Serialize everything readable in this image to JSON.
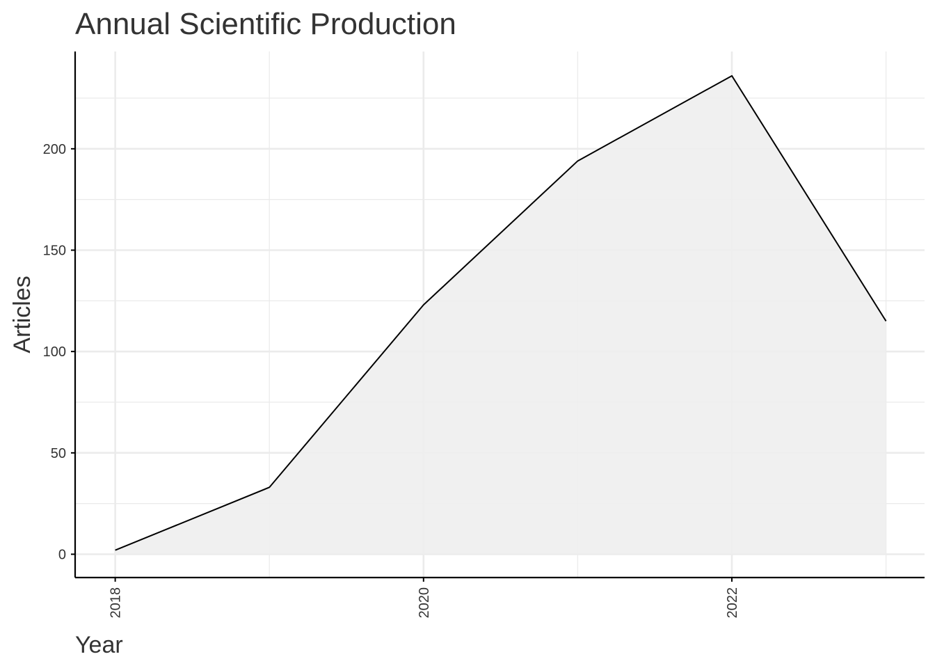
{
  "chart_data": {
    "type": "area",
    "title": "Annual Scientific Production",
    "xlabel": "Year",
    "ylabel": "Articles",
    "x": [
      2018,
      2019,
      2020,
      2021,
      2022,
      2023
    ],
    "series": [
      {
        "values": [
          2,
          33,
          123,
          194,
          236,
          115
        ]
      }
    ],
    "xlim": [
      2017.74,
      2023.25
    ],
    "ylim": [
      -11.5,
      248
    ],
    "xticks": [
      2018,
      2020,
      2022
    ],
    "xtick_labels": [
      "2018",
      "2020",
      "2022"
    ],
    "yticks": [
      0,
      50,
      100,
      150,
      200
    ],
    "ytick_labels": [
      "0",
      "50",
      "100",
      "150",
      "200"
    ],
    "grid": true,
    "legend": "none",
    "colors": {
      "line": "#000000",
      "fill": "#eeeeee",
      "grid": "#ebebeb",
      "axis": "#000000",
      "text": "#333333"
    }
  }
}
